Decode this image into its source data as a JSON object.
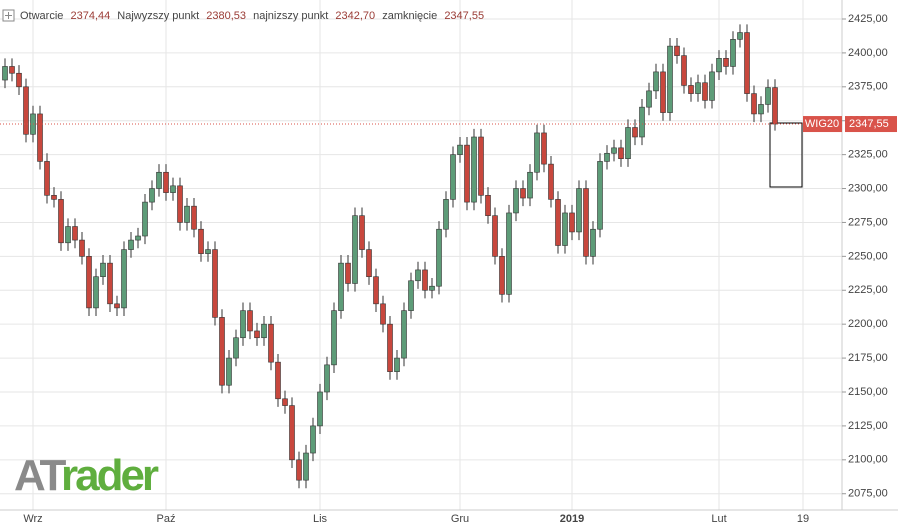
{
  "chart_data": {
    "type": "candlestick",
    "header": {
      "open_label": "Otwarcie",
      "open": "2374,44",
      "high_label": "Najwyzszy punkt",
      "high": "2380,53",
      "low_label": "najnizszy punkt",
      "low": "2342,70",
      "close_label": "zamknięcie",
      "close": "2347,55"
    },
    "logo": {
      "part1": "AT",
      "part2": "rader"
    },
    "categories": [
      null,
      null,
      null,
      null,
      "Wrz",
      null,
      null,
      null,
      null,
      null,
      null,
      null,
      null,
      null,
      null,
      null,
      null,
      null,
      null,
      null,
      null,
      null,
      null,
      "Paź",
      null,
      null,
      null,
      null,
      null,
      null,
      null,
      null,
      null,
      null,
      null,
      null,
      null,
      null,
      null,
      null,
      null,
      null,
      null,
      null,
      null,
      "Lis",
      null,
      null,
      null,
      null,
      null,
      null,
      null,
      null,
      null,
      null,
      null,
      null,
      null,
      null,
      null,
      null,
      null,
      null,
      null,
      "Gru",
      null,
      null,
      null,
      null,
      null,
      null,
      null,
      null,
      null,
      null,
      null,
      null,
      null,
      null,
      null,
      "2019",
      null,
      null,
      null,
      null,
      null,
      null,
      null,
      null,
      null,
      null,
      null,
      null,
      null,
      null,
      null,
      null,
      null,
      null,
      null,
      null,
      "Lut",
      null,
      null,
      null,
      null,
      null,
      null,
      null,
      null,
      null,
      null,
      null,
      "19"
    ],
    "open": [
      2380,
      2390,
      2385,
      2375,
      2340,
      2355,
      2320,
      2295,
      2292,
      2260,
      2272,
      2262,
      2250,
      2212,
      2235,
      2245,
      2215,
      2212,
      2255,
      2262,
      2265,
      2290,
      2300,
      2312,
      2297,
      2302,
      2275,
      2287,
      2270,
      2252,
      2255,
      2205,
      2155,
      2175,
      2190,
      2210,
      2195,
      2190,
      2200,
      2172,
      2145,
      2140,
      2100,
      2085,
      2105,
      2125,
      2150,
      2170,
      2210,
      2245,
      2230,
      2280,
      2255,
      2235,
      2215,
      2200,
      2165,
      2175,
      2210,
      2232,
      2240,
      2225,
      2228,
      2270,
      2292,
      2325,
      2332,
      2290,
      2338,
      2295,
      2280,
      2250,
      2222,
      2282,
      2300,
      2293,
      2312,
      2341,
      2318,
      2292,
      2258,
      2282,
      2268,
      2300,
      2250,
      2270,
      2320,
      2326,
      2330,
      2322,
      2345,
      2338,
      2360,
      2372,
      2386,
      2356,
      2405,
      2398,
      2376,
      2370,
      2378,
      2365,
      2386,
      2396,
      2390,
      2410,
      2415,
      2370,
      2355,
      2362,
      2374.44,
      null,
      null,
      null,
      null
    ],
    "high": [
      2396,
      2396,
      2391,
      2381,
      2361,
      2361,
      2326,
      2301,
      2298,
      2278,
      2278,
      2268,
      2256,
      2241,
      2251,
      2251,
      2221,
      2261,
      2268,
      2271,
      2296,
      2306,
      2318,
      2318,
      2308,
      2308,
      2293,
      2293,
      2276,
      2261,
      2261,
      2211,
      2181,
      2196,
      2216,
      2216,
      2201,
      2206,
      2206,
      2178,
      2151,
      2146,
      2106,
      2111,
      2131,
      2156,
      2176,
      2216,
      2251,
      2251,
      2286,
      2286,
      2261,
      2241,
      2221,
      2206,
      2181,
      2216,
      2238,
      2246,
      2246,
      2234,
      2276,
      2298,
      2331,
      2338,
      2338,
      2344,
      2344,
      2301,
      2286,
      2256,
      2288,
      2306,
      2306,
      2318,
      2347,
      2347,
      2324,
      2298,
      2288,
      2288,
      2306,
      2306,
      2276,
      2326,
      2332,
      2336,
      2336,
      2351,
      2351,
      2366,
      2378,
      2392,
      2392,
      2411,
      2411,
      2404,
      2382,
      2384,
      2384,
      2392,
      2402,
      2402,
      2416,
      2421,
      2421,
      2376,
      2368,
      2380.44,
      2380.53,
      null,
      null,
      null,
      null
    ],
    "low": [
      2374,
      2379,
      2369,
      2334,
      2334,
      2314,
      2289,
      2286,
      2254,
      2254,
      2256,
      2244,
      2206,
      2206,
      2229,
      2209,
      2206,
      2206,
      2249,
      2256,
      2259,
      2284,
      2294,
      2291,
      2291,
      2269,
      2269,
      2264,
      2246,
      2246,
      2199,
      2149,
      2149,
      2169,
      2184,
      2189,
      2184,
      2184,
      2166,
      2139,
      2134,
      2094,
      2079,
      2079,
      2099,
      2119,
      2144,
      2164,
      2204,
      2224,
      2224,
      2249,
      2229,
      2209,
      2194,
      2159,
      2159,
      2169,
      2204,
      2226,
      2219,
      2219,
      2222,
      2264,
      2286,
      2319,
      2284,
      2284,
      2289,
      2274,
      2244,
      2216,
      2216,
      2276,
      2287,
      2287,
      2306,
      2312,
      2286,
      2252,
      2252,
      2262,
      2262,
      2244,
      2244,
      2264,
      2314,
      2320,
      2316,
      2316,
      2332,
      2332,
      2354,
      2366,
      2350,
      2350,
      2392,
      2370,
      2364,
      2364,
      2359,
      2359,
      2380,
      2384,
      2384,
      2404,
      2364,
      2349,
      2349,
      2356,
      2342.7,
      null,
      null,
      null,
      null
    ],
    "close": [
      2390,
      2385,
      2375,
      2340,
      2355,
      2320,
      2295,
      2292,
      2260,
      2272,
      2262,
      2250,
      2212,
      2235,
      2245,
      2215,
      2212,
      2255,
      2262,
      2265,
      2290,
      2300,
      2312,
      2297,
      2302,
      2275,
      2287,
      2270,
      2252,
      2255,
      2205,
      2155,
      2175,
      2190,
      2210,
      2195,
      2190,
      2200,
      2172,
      2145,
      2140,
      2100,
      2085,
      2105,
      2125,
      2150,
      2170,
      2210,
      2245,
      2230,
      2280,
      2255,
      2235,
      2215,
      2200,
      2165,
      2175,
      2210,
      2232,
      2240,
      2225,
      2228,
      2270,
      2292,
      2325,
      2332,
      2290,
      2338,
      2295,
      2280,
      2250,
      2222,
      2282,
      2300,
      2293,
      2312,
      2341,
      2318,
      2292,
      2258,
      2282,
      2268,
      2300,
      2250,
      2270,
      2320,
      2326,
      2330,
      2322,
      2345,
      2338,
      2360,
      2372,
      2386,
      2356,
      2405,
      2398,
      2376,
      2370,
      2378,
      2365,
      2386,
      2396,
      2390,
      2410,
      2415,
      2370,
      2355,
      2362,
      2374.44,
      2347.55,
      null,
      null,
      null,
      null
    ],
    "up_color": "#5d9c78",
    "down_color": "#c8473d",
    "last_price": {
      "name": "WIG20",
      "value": 2347.55,
      "label": "2347,55",
      "color": "#d9534a"
    },
    "ylim": [
      2063,
      2439
    ],
    "yticks": [
      {
        "value": 2075,
        "label": "2075,00"
      },
      {
        "value": 2100,
        "label": "2100,00"
      },
      {
        "value": 2125,
        "label": "2125,00"
      },
      {
        "value": 2150,
        "label": "2150,00"
      },
      {
        "value": 2175,
        "label": "2175,00"
      },
      {
        "value": 2200,
        "label": "2200,00"
      },
      {
        "value": 2225,
        "label": "2225,00"
      },
      {
        "value": 2250,
        "label": "2250,00"
      },
      {
        "value": 2275,
        "label": "2275,00"
      },
      {
        "value": 2300,
        "label": "2300,00"
      },
      {
        "value": 2325,
        "label": "2325,00"
      },
      {
        "value": 2350,
        "label": "2350,00"
      },
      {
        "value": 2375,
        "label": "2375,00"
      },
      {
        "value": 2400,
        "label": "2400,00"
      },
      {
        "value": 2425,
        "label": "2425,00"
      }
    ],
    "grid": true
  }
}
